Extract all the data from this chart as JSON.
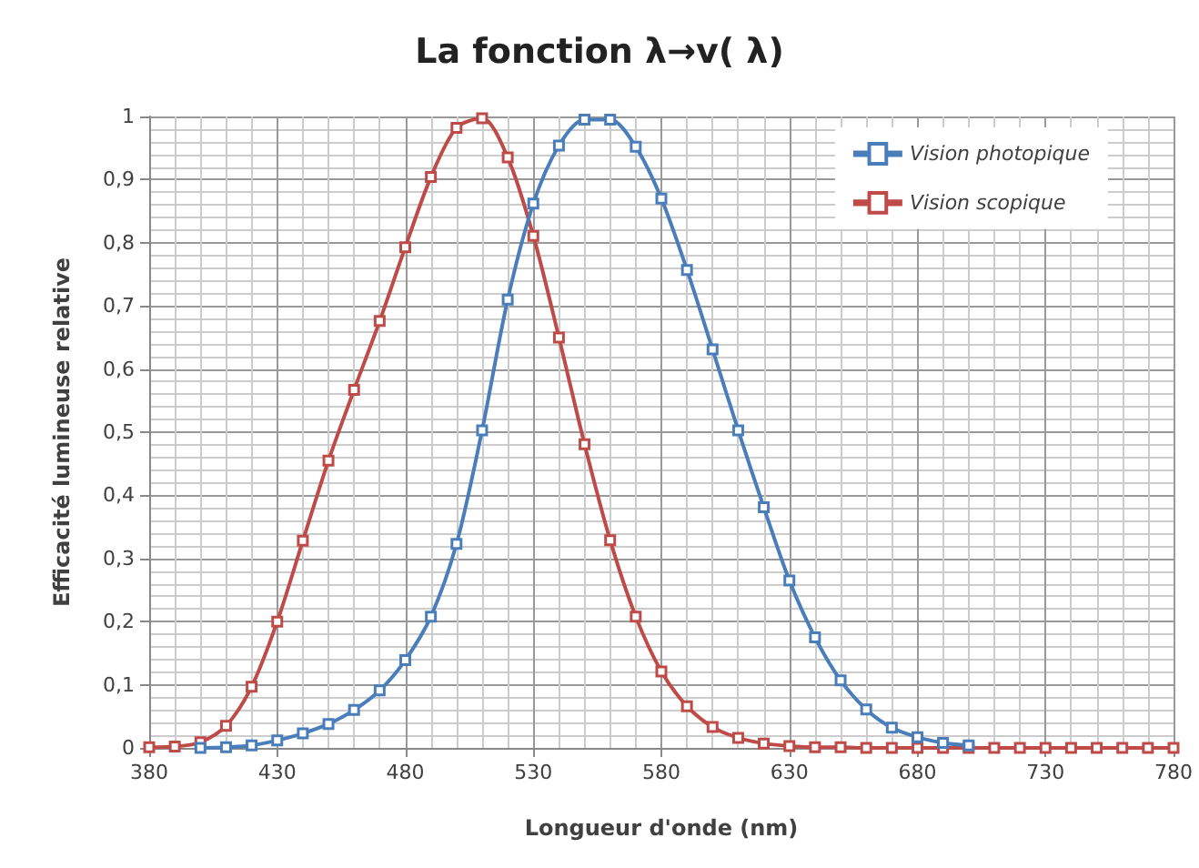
{
  "chart_data": {
    "type": "line",
    "title": "La fonction λ→v( λ)",
    "xlabel": "Longueur d'onde (nm)",
    "ylabel": "Efficacité lumineuse relative",
    "xlim": [
      380,
      780
    ],
    "xticks": [
      380,
      430,
      480,
      530,
      580,
      630,
      680,
      730,
      780
    ],
    "ylim": [
      0,
      1
    ],
    "yticks": [
      {
        "value": 0,
        "label": "0"
      },
      {
        "value": 0.1,
        "label": "0,1"
      },
      {
        "value": 0.2,
        "label": "0,2"
      },
      {
        "value": 0.3,
        "label": "0,3"
      },
      {
        "value": 0.4,
        "label": "0,4"
      },
      {
        "value": 0.5,
        "label": "0,5"
      },
      {
        "value": 0.6,
        "label": "0,6"
      },
      {
        "value": 0.7,
        "label": "0,7"
      },
      {
        "value": 0.8,
        "label": "0,8"
      },
      {
        "value": 0.9,
        "label": "0,9"
      },
      {
        "value": 1,
        "label": "1"
      }
    ],
    "grid": true,
    "legend": "top right",
    "marker": "square",
    "line_style": "solid",
    "series": [
      {
        "name": "Vision photopique",
        "color": "#4a7ebb",
        "x": [
          400,
          410,
          420,
          430,
          440,
          450,
          460,
          470,
          480,
          490,
          500,
          510,
          520,
          530,
          540,
          550,
          560,
          570,
          580,
          590,
          600,
          610,
          620,
          630,
          640,
          650,
          660,
          670,
          680,
          690,
          700
        ],
        "values": [
          0.0,
          0.001,
          0.004,
          0.012,
          0.023,
          0.038,
          0.06,
          0.091,
          0.139,
          0.208,
          0.323,
          0.503,
          0.71,
          0.862,
          0.954,
          0.995,
          0.995,
          0.952,
          0.87,
          0.757,
          0.631,
          0.503,
          0.381,
          0.265,
          0.175,
          0.107,
          0.061,
          0.032,
          0.017,
          0.008,
          0.004
        ]
      },
      {
        "name": "Vision scopique",
        "color": "#be4b48",
        "x": [
          380,
          390,
          400,
          410,
          420,
          430,
          440,
          450,
          460,
          470,
          480,
          490,
          500,
          510,
          520,
          530,
          540,
          550,
          560,
          570,
          580,
          590,
          600,
          610,
          620,
          630,
          640,
          650,
          660,
          670,
          680,
          690,
          700,
          710,
          720,
          730,
          740,
          750,
          760,
          770,
          780
        ],
        "values": [
          0.001,
          0.002,
          0.009,
          0.035,
          0.097,
          0.2,
          0.328,
          0.455,
          0.567,
          0.676,
          0.793,
          0.904,
          0.982,
          0.997,
          0.935,
          0.811,
          0.65,
          0.481,
          0.329,
          0.208,
          0.121,
          0.066,
          0.033,
          0.016,
          0.007,
          0.003,
          0.001,
          0.001,
          0,
          0,
          0,
          0,
          0,
          0,
          0,
          0,
          0,
          0,
          0,
          0,
          0
        ]
      }
    ]
  }
}
